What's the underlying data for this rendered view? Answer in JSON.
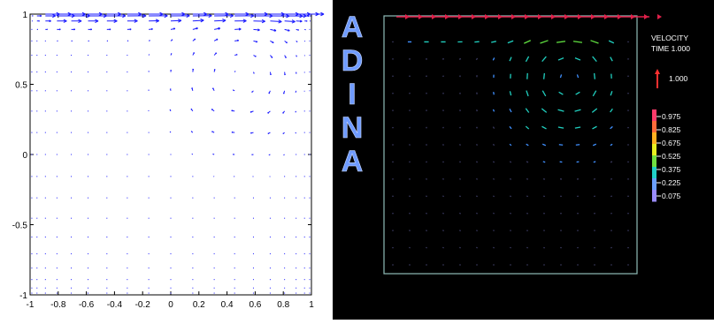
{
  "chart_data": [
    {
      "type": "quiver",
      "title": "",
      "xlabel": "",
      "ylabel": "",
      "xlim": [
        -1,
        1
      ],
      "ylim": [
        -1,
        1
      ],
      "x_ticks": [
        "-1",
        "-0.8",
        "-0.6",
        "-0.4",
        "-0.2",
        "0",
        "0.2",
        "0.4",
        "0.6",
        "0.8",
        "1"
      ],
      "y_ticks": [
        "1",
        "0.5",
        "0",
        "-0.5",
        "-1"
      ],
      "arrow_color": "#1a1aff",
      "grid": false,
      "lid_y": 1.0,
      "lid_velocity": 1.0,
      "vortex_center": [
        0.5,
        0.55
      ]
    },
    {
      "type": "quiver",
      "logo": "ADINA",
      "logo_color": "#6f9bff",
      "legend": {
        "title": "VELOCITY",
        "time_label": "TIME 1.000",
        "reference_value": "1.000",
        "reference_color": "#ff3030",
        "scale_values": [
          "0.975",
          "0.825",
          "0.675",
          "0.525",
          "0.375",
          "0.225",
          "0.075"
        ]
      },
      "background_color": "#000000",
      "box_color": "#8fbcb8",
      "lid_velocity": 1.0,
      "lid_color": "#e0204a"
    }
  ]
}
